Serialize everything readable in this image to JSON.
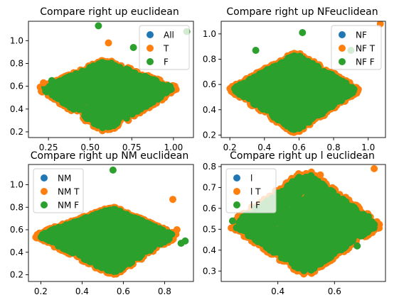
{
  "chart_data": [
    {
      "type": "scatter",
      "title": "Compare right up euclidean",
      "xlim": [
        0.13,
        1.12
      ],
      "ylim": [
        0.15,
        1.17
      ],
      "xticks": [
        0.25,
        0.5,
        0.75,
        1.0
      ],
      "xtick_labels": [
        "0.25",
        "0.50",
        "0.75",
        "1.00"
      ],
      "yticks": [
        0.2,
        0.4,
        0.6,
        0.8,
        1.0
      ],
      "ytick_labels": [
        "0.2",
        "0.4",
        "0.6",
        "0.8",
        "1.0"
      ],
      "legend_position": "top-right",
      "cloud": {
        "cx": 0.59,
        "cy": 0.58,
        "top_y": 0.83,
        "bottom_y": 0.2,
        "left_x": 0.2,
        "right_x": 1.03
      },
      "series": [
        {
          "name": "All",
          "color": "#1f77b4"
        },
        {
          "name": "T",
          "color": "#ff7f0e"
        },
        {
          "name": "F",
          "color": "#2ca02c"
        }
      ],
      "outliers": [
        [
          0.55,
          1.13
        ],
        [
          0.61,
          0.98
        ],
        [
          0.76,
          0.94
        ],
        [
          1.08,
          1.08
        ],
        [
          0.22,
          0.63
        ],
        [
          0.27,
          0.65
        ]
      ]
    },
    {
      "type": "scatter",
      "title": "Compare right up NFeuclidean",
      "xlim": [
        0.15,
        1.1
      ],
      "ylim": [
        0.18,
        1.1
      ],
      "xticks": [
        0.2,
        0.4,
        0.6,
        0.8,
        1.0
      ],
      "xtick_labels": [
        "0.2",
        "0.4",
        "0.6",
        "0.8",
        "1.0"
      ],
      "yticks": [
        0.2,
        0.4,
        0.6,
        0.8,
        1.0
      ],
      "ytick_labels": [
        "0.2",
        "0.4",
        "0.6",
        "0.8",
        "1.0"
      ],
      "legend_position": "top-right",
      "cloud": {
        "cx": 0.58,
        "cy": 0.56,
        "top_y": 0.85,
        "bottom_y": 0.22,
        "left_x": 0.2,
        "right_x": 0.95
      },
      "series": [
        {
          "name": "NF",
          "color": "#1f77b4"
        },
        {
          "name": "NF T",
          "color": "#ff7f0e"
        },
        {
          "name": "NF F",
          "color": "#2ca02c"
        }
      ],
      "outliers": [
        [
          0.62,
          1.01
        ],
        [
          1.07,
          1.08
        ],
        [
          0.9,
          0.87
        ],
        [
          0.35,
          0.87
        ]
      ]
    },
    {
      "type": "scatter",
      "title": "Compare right up NM euclidean",
      "xlim": [
        0.14,
        0.94
      ],
      "ylim": [
        0.14,
        1.18
      ],
      "xticks": [
        0.2,
        0.4,
        0.6,
        0.8
      ],
      "xtick_labels": [
        "0.2",
        "0.4",
        "0.6",
        "0.8"
      ],
      "yticks": [
        0.2,
        0.4,
        0.6,
        0.8,
        1.0
      ],
      "ytick_labels": [
        "0.2",
        "0.4",
        "0.6",
        "0.8",
        "1.0"
      ],
      "legend_position": "top-left",
      "cloud": {
        "cx": 0.55,
        "cy": 0.55,
        "top_y": 0.8,
        "bottom_y": 0.2,
        "left_x": 0.17,
        "right_x": 0.86
      },
      "series": [
        {
          "name": "NM",
          "color": "#1f77b4"
        },
        {
          "name": "NM T",
          "color": "#ff7f0e"
        },
        {
          "name": "NM F",
          "color": "#2ca02c"
        }
      ],
      "outliers": [
        [
          0.55,
          1.13
        ],
        [
          0.84,
          0.87
        ],
        [
          0.9,
          0.5
        ],
        [
          0.88,
          0.48
        ],
        [
          0.86,
          0.6
        ]
      ]
    },
    {
      "type": "scatter",
      "title": "Compare right up l euclidean",
      "xlim": [
        0.2,
        0.78
      ],
      "ylim": [
        0.25,
        0.81
      ],
      "xticks": [
        0.4,
        0.6
      ],
      "xtick_labels": [
        "0.4",
        "0.6"
      ],
      "yticks": [
        0.3,
        0.4,
        0.5,
        0.6,
        0.7,
        0.8
      ],
      "ytick_labels": [
        "0.3",
        "0.4",
        "0.5",
        "0.6",
        "0.7",
        "0.8"
      ],
      "legend_position": "top-left",
      "cloud": {
        "cx": 0.5,
        "cy": 0.52,
        "top_y": 0.78,
        "bottom_y": 0.28,
        "left_x": 0.23,
        "right_x": 0.76
      },
      "series": [
        {
          "name": "l",
          "color": "#1f77b4"
        },
        {
          "name": "l T",
          "color": "#ff7f0e"
        },
        {
          "name": "l F",
          "color": "#2ca02c"
        }
      ],
      "outliers": [
        [
          0.24,
          0.54
        ],
        [
          0.74,
          0.79
        ],
        [
          0.72,
          0.56
        ],
        [
          0.68,
          0.42
        ],
        [
          0.55,
          0.76
        ]
      ]
    }
  ]
}
